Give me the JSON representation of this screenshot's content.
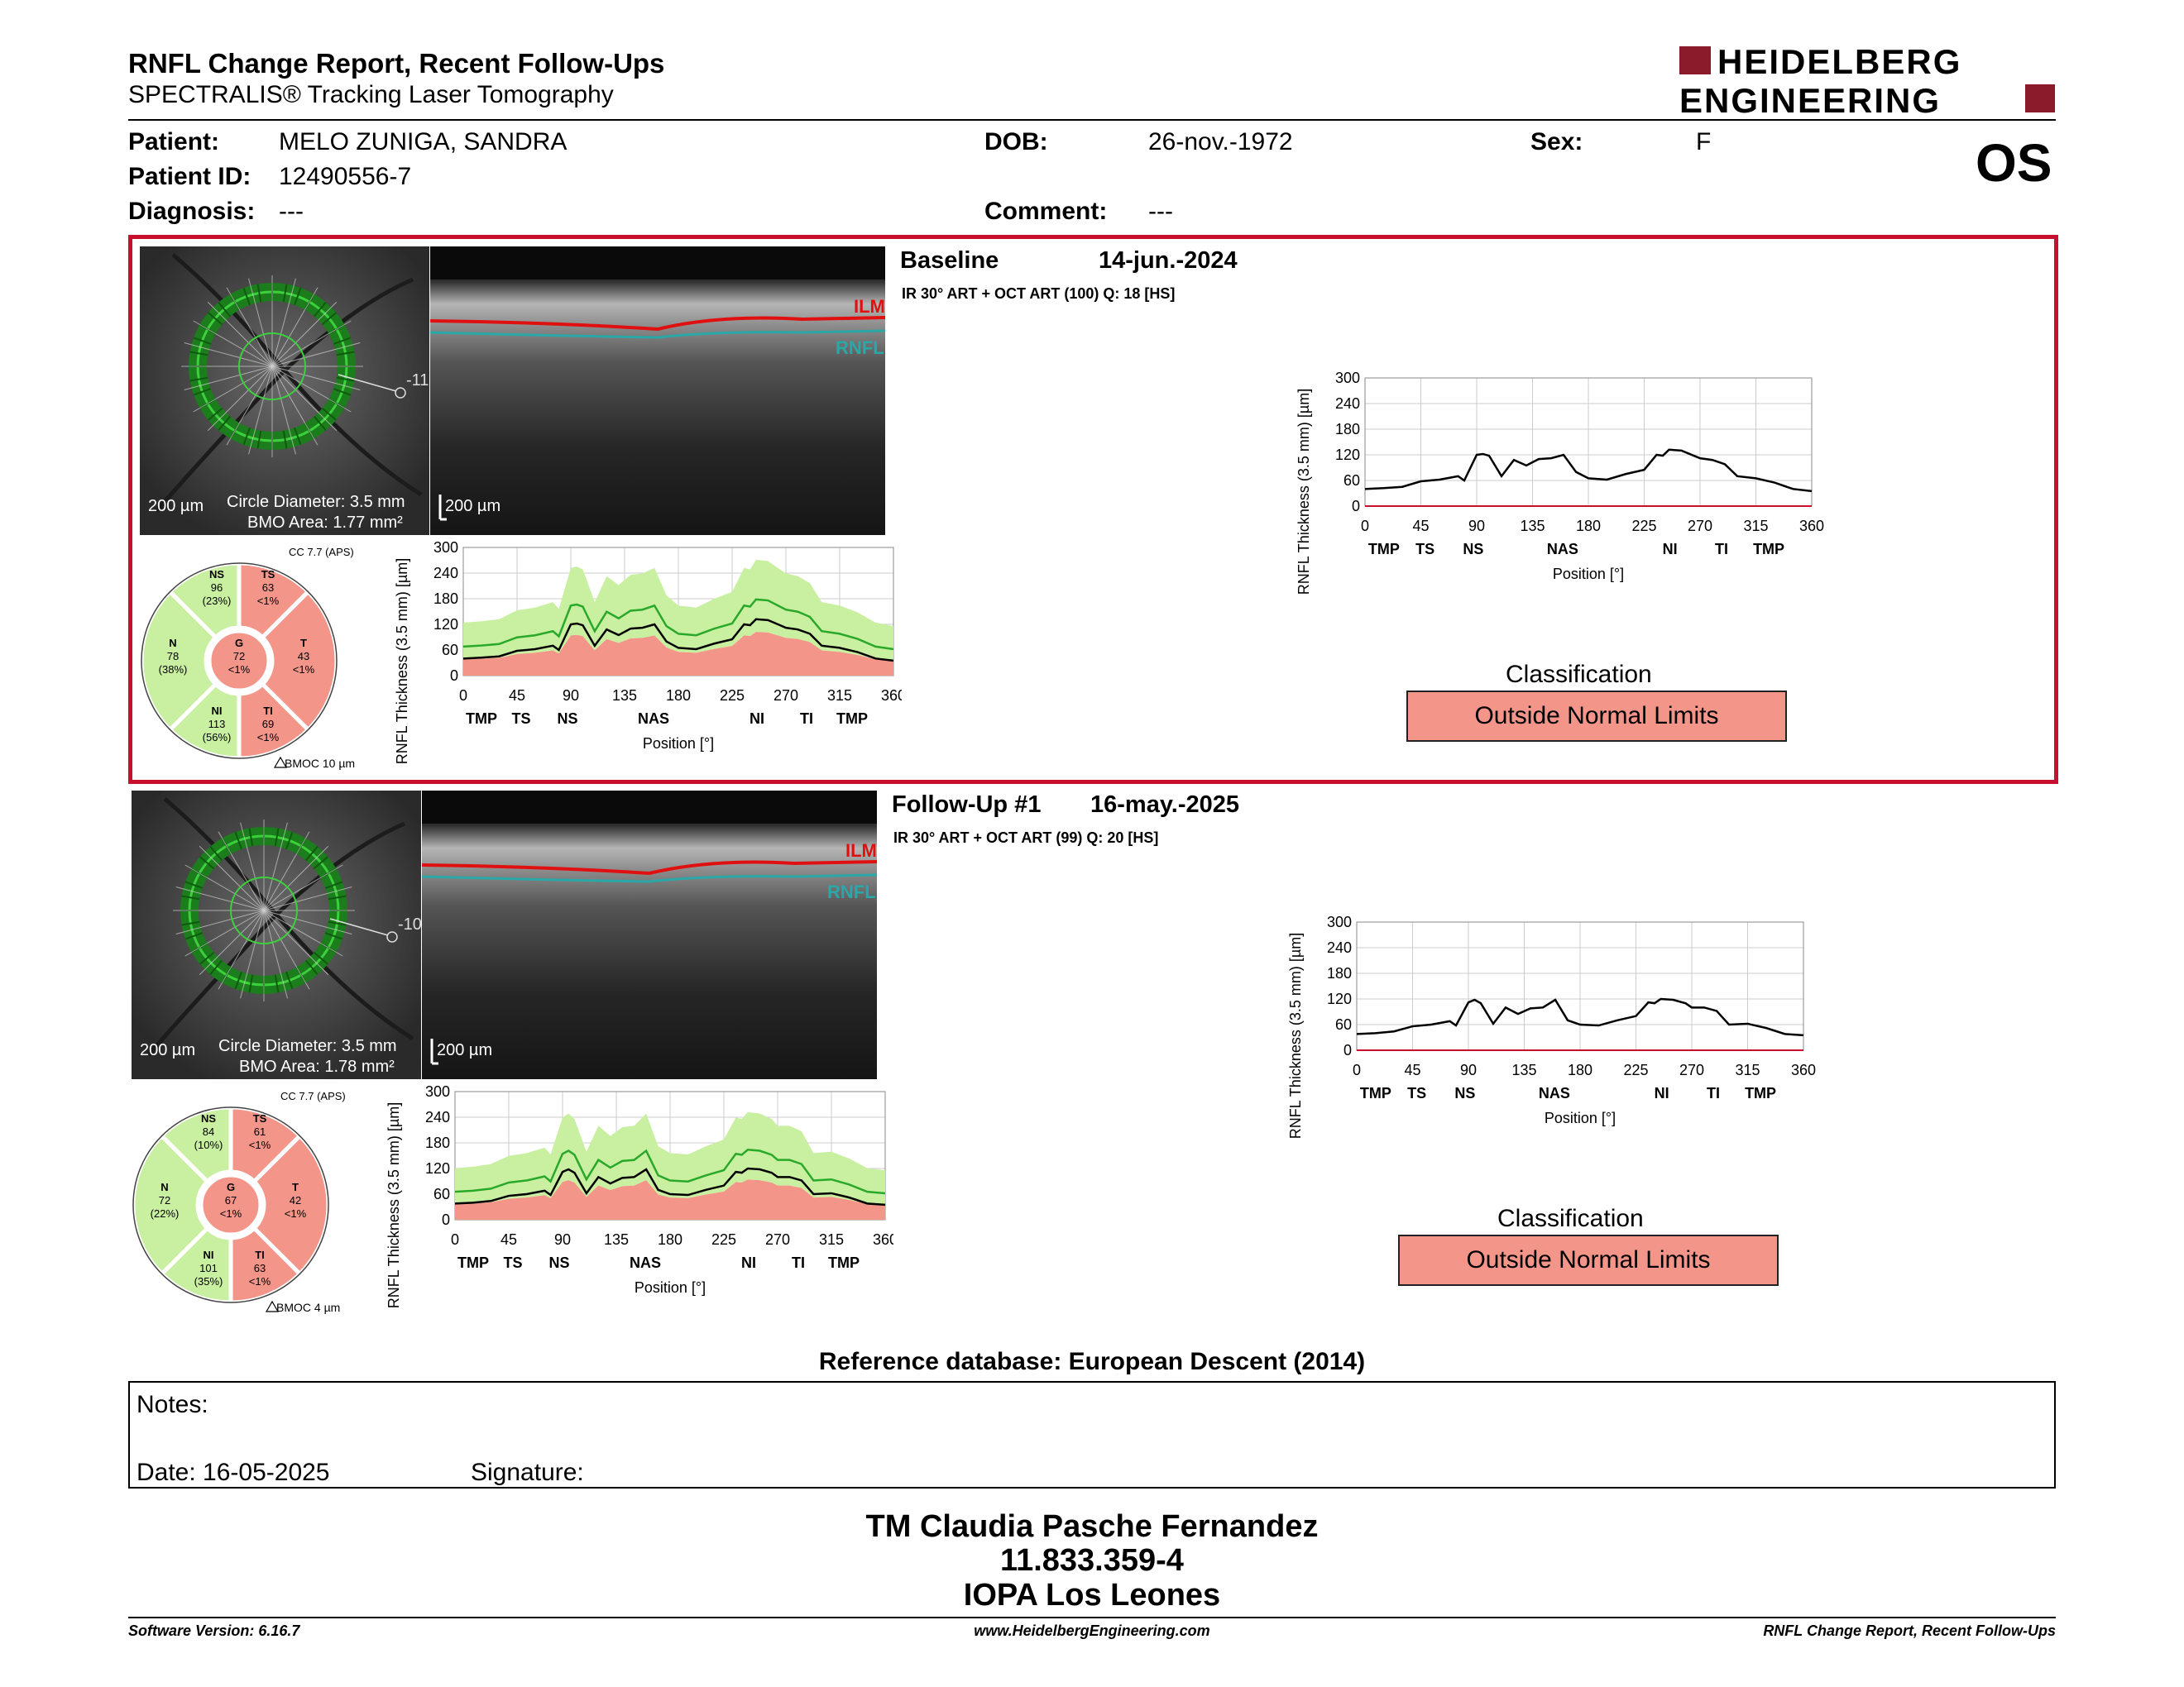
{
  "header": {
    "title": "RNFL Change Report, Recent Follow-Ups",
    "subtitle": "SPECTRALIS® Tracking Laser Tomography",
    "logo_line1": "HEIDELBERG",
    "logo_line2": "ENGINEERING",
    "eye": "OS"
  },
  "patient": {
    "patient_label": "Patient:",
    "patient_value": "MELO ZUNIGA, SANDRA",
    "id_label": "Patient ID:",
    "id_value": "12490556-7",
    "diag_label": "Diagnosis:",
    "diag_value": "---",
    "dob_label": "DOB:",
    "dob_value": "26-nov.-1972",
    "comment_label": "Comment:",
    "comment_value": "---",
    "sex_label": "Sex:",
    "sex_value": "F"
  },
  "colors": {
    "accent_border": "#c8102e",
    "outside_limits": "#f4958a",
    "within_limits": "#c9f0a0",
    "borderline": "#f5f08a",
    "logo_red": "#8b1a2b"
  },
  "exams": [
    {
      "label": "Baseline",
      "date": "14-jun.-2024",
      "scan_info": "IR 30° ART + OCT ART (100) Q: 18 [HS]",
      "angle_marker": "-11",
      "circle_diameter": "Circle Diameter: 3.5 mm",
      "bmo_area": "BMO Area: 1.77 mm²",
      "scale_fundus": "200 µm",
      "scale_oct": "200 µm",
      "ilm": "ILM",
      "rnfl": "RNFL",
      "cc": "CC 7.7 (APS)",
      "bmoc": "BMOC 10 µm",
      "sectors": {
        "NS": {
          "name": "NS",
          "value": "96",
          "pct": "(23%)"
        },
        "TS": {
          "name": "TS",
          "value": "63",
          "pct": "<1%"
        },
        "N": {
          "name": "N",
          "value": "78",
          "pct": "(38%)"
        },
        "G": {
          "name": "G",
          "value": "72",
          "pct": "<1%"
        },
        "T": {
          "name": "T",
          "value": "43",
          "pct": "<1%"
        },
        "NI": {
          "name": "NI",
          "value": "113",
          "pct": "(56%)"
        },
        "TI": {
          "name": "TI",
          "value": "69",
          "pct": "<1%"
        }
      },
      "classification_label": "Classification",
      "classification": "Outside Normal Limits"
    },
    {
      "label": "Follow-Up #1",
      "date": "16-may.-2025",
      "scan_info": "IR 30° ART + OCT ART (99) Q: 20 [HS]",
      "angle_marker": "-10",
      "circle_diameter": "Circle Diameter: 3.5 mm",
      "bmo_area": "BMO Area: 1.78 mm²",
      "scale_fundus": "200 µm",
      "scale_oct": "200 µm",
      "ilm": "ILM",
      "rnfl": "RNFL",
      "cc": "CC 7.7 (APS)",
      "bmoc": "BMOC 4 µm",
      "sectors": {
        "NS": {
          "name": "NS",
          "value": "84",
          "pct": "(10%)"
        },
        "TS": {
          "name": "TS",
          "value": "61",
          "pct": "<1%"
        },
        "N": {
          "name": "N",
          "value": "72",
          "pct": "(22%)"
        },
        "G": {
          "name": "G",
          "value": "67",
          "pct": "<1%"
        },
        "T": {
          "name": "T",
          "value": "42",
          "pct": "<1%"
        },
        "NI": {
          "name": "NI",
          "value": "101",
          "pct": "(35%)"
        },
        "TI": {
          "name": "TI",
          "value": "63",
          "pct": "<1%"
        }
      },
      "classification_label": "Classification",
      "classification": "Outside Normal Limits"
    }
  ],
  "chart_data": [
    {
      "type": "line",
      "ylabel": "RNFL Thickness (3.5 mm) [µm]",
      "xlabel": "Position [°]",
      "ylim": [
        0,
        300
      ],
      "xlim": [
        0,
        360
      ],
      "yticks": [
        "300",
        "240",
        "180",
        "120",
        "60",
        "0"
      ],
      "xticks": [
        "0",
        "45",
        "90",
        "135",
        "180",
        "225",
        "270",
        "315",
        "360"
      ],
      "sector_labels": [
        "TMP",
        "TS",
        "NS",
        "NAS",
        "NI",
        "TI",
        "TMP"
      ],
      "series": [
        {
          "name": "Baseline",
          "x": [
            0,
            15,
            30,
            45,
            60,
            75,
            80,
            90,
            95,
            100,
            110,
            120,
            130,
            140,
            150,
            160,
            170,
            180,
            195,
            210,
            225,
            235,
            240,
            245,
            255,
            265,
            270,
            280,
            290,
            300,
            315,
            330,
            345,
            360
          ],
          "values": [
            40,
            42,
            45,
            58,
            62,
            70,
            60,
            120,
            122,
            118,
            70,
            108,
            95,
            110,
            112,
            120,
            80,
            65,
            62,
            75,
            85,
            120,
            118,
            132,
            130,
            118,
            112,
            108,
            98,
            70,
            65,
            55,
            40,
            35
          ]
        }
      ]
    },
    {
      "type": "line",
      "ylabel": "RNFL Thickness (3.5 mm) [µm]",
      "xlabel": "Position [°]",
      "ylim": [
        0,
        300
      ],
      "xlim": [
        0,
        360
      ],
      "yticks": [
        "300",
        "240",
        "180",
        "120",
        "60",
        "0"
      ],
      "xticks": [
        "0",
        "45",
        "90",
        "135",
        "180",
        "225",
        "270",
        "315",
        "360"
      ],
      "sector_labels": [
        "TMP",
        "TS",
        "NS",
        "NAS",
        "NI",
        "TI",
        "TMP"
      ],
      "series": [
        {
          "name": "Follow-Up #1",
          "x": [
            0,
            15,
            30,
            45,
            60,
            75,
            80,
            90,
            95,
            100,
            110,
            120,
            130,
            140,
            150,
            160,
            170,
            180,
            195,
            210,
            225,
            235,
            240,
            245,
            255,
            265,
            270,
            280,
            290,
            300,
            315,
            330,
            345,
            360
          ],
          "values": [
            38,
            40,
            44,
            56,
            60,
            68,
            58,
            112,
            118,
            110,
            62,
            100,
            85,
            98,
            100,
            118,
            70,
            60,
            58,
            70,
            80,
            112,
            110,
            120,
            118,
            110,
            100,
            100,
            92,
            60,
            62,
            52,
            38,
            35
          ]
        }
      ]
    }
  ],
  "reference_db": "Reference database: European Descent (2014)",
  "notes": {
    "label": "Notes:",
    "date_label": "Date: 16-05-2025",
    "signature_label": "Signature:"
  },
  "footer": {
    "name": "TM Claudia Pasche Fernandez",
    "id": "11.833.359-4",
    "org": "IOPA Los Leones",
    "software": "Software Version: 6.16.7",
    "website": "www.HeidelbergEngineering.com",
    "report_name": "RNFL Change Report, Recent Follow-Ups"
  }
}
